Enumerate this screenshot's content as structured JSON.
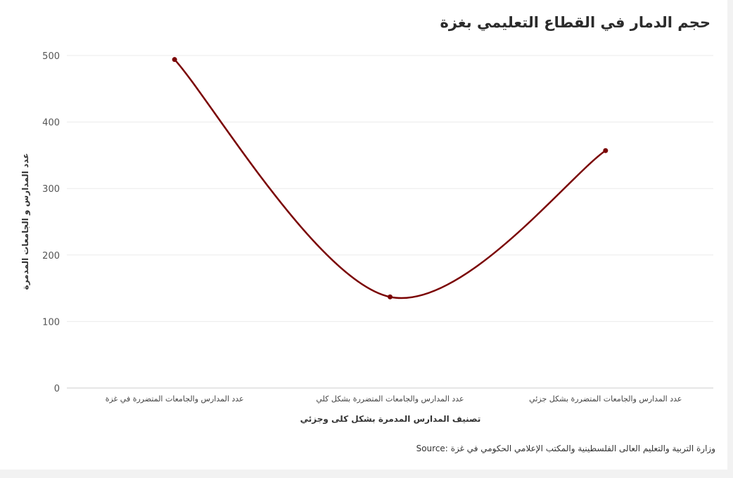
{
  "chart_data": {
    "type": "line",
    "title": "حجم الدمار في القطاع التعليمي بغزة",
    "xlabel": "تصنيف المدارس المدمرة بشكل كلى وجزئي",
    "ylabel": "عدد المدارس و الجامعات المدمرة",
    "categories": [
      "عدد المدارس والجامعات المتضررة في غزة",
      "عدد المدارس والجامعات المتضررة بشكل كلي",
      "عدد المدارس والجامعات المتضررة بشكل جزئي"
    ],
    "series": [
      {
        "values": [
          494,
          137,
          357
        ]
      }
    ],
    "ylim": [
      0,
      500
    ],
    "yticks": [
      0,
      100,
      200,
      300,
      400,
      500
    ],
    "grid": true,
    "legend": "none",
    "line_color": "#7a0000",
    "marker_color": "#7a0000"
  },
  "source_label": "Source:",
  "source_text": "وزارة التربية والتعليم العالى الفلسطينية والمكتب الإعلامي الحكومي في غزة"
}
